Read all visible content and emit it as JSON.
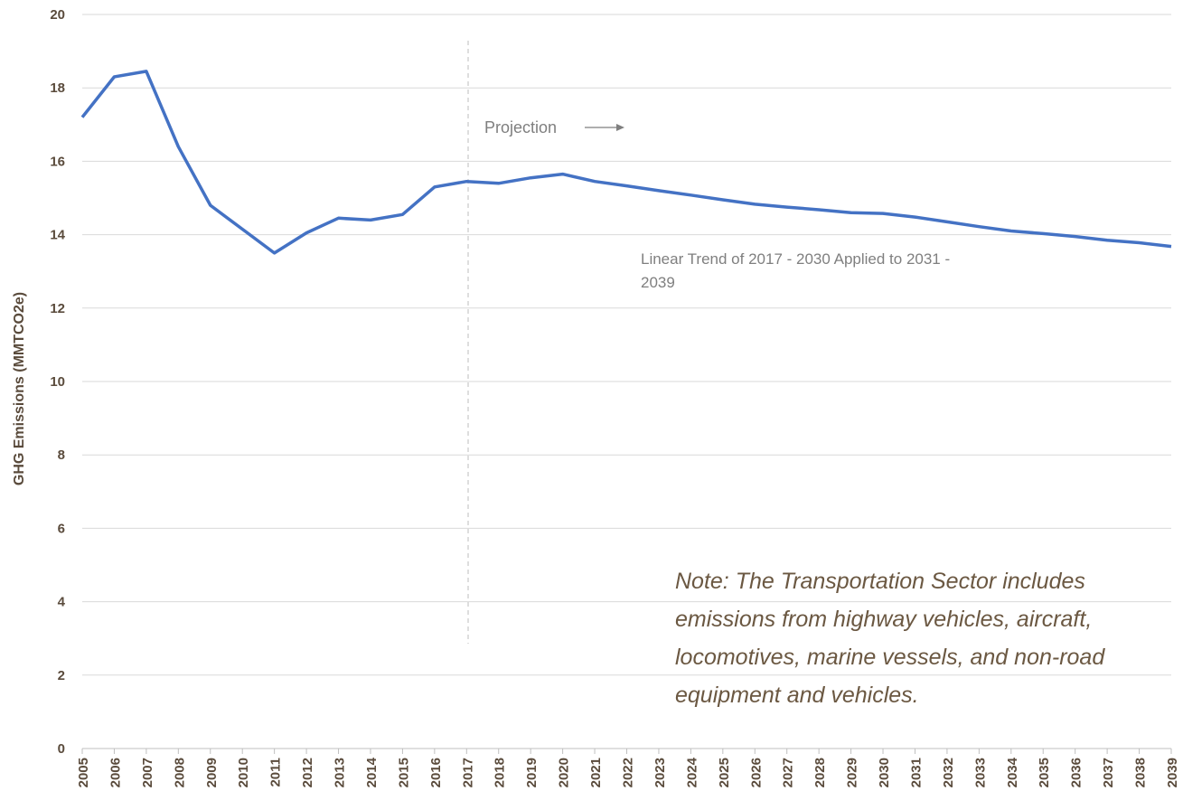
{
  "chart_data": {
    "type": "line",
    "y_label": "GHG Emissions (MMTCO2e)",
    "annotations": [
      "Projection",
      "Linear Trend of 2017 - 2030 Applied to 2031 - 2039",
      "Note: The Transportation Sector includes emissions from highway vehicles, aircraft, locomotives, marine vessels, and non-road equipment and vehicles."
    ],
    "categories": [
      "2005",
      "2006",
      "2007",
      "2008",
      "2009",
      "2010",
      "2011",
      "2012",
      "2013",
      "2014",
      "2015",
      "2016",
      "2017",
      "2018",
      "2019",
      "2020",
      "2021",
      "2022",
      "2023",
      "2024",
      "2025",
      "2026",
      "2027",
      "2028",
      "2029",
      "2030",
      "2031",
      "2032",
      "2033",
      "2034",
      "2035",
      "2036",
      "2037",
      "2038",
      "2039"
    ],
    "series": [
      {
        "color": "#4472c4",
        "values": [
          17.2,
          18.3,
          18.45,
          16.4,
          14.8,
          14.15,
          13.5,
          14.05,
          14.45,
          14.4,
          14.55,
          15.3,
          15.45,
          15.4,
          15.55,
          15.65,
          15.45,
          15.33,
          15.2,
          15.08,
          14.95,
          14.83,
          14.75,
          14.68,
          14.6,
          14.58,
          14.48,
          14.35,
          14.22,
          14.1,
          14.03,
          13.95,
          13.85,
          13.78,
          13.68
        ]
      }
    ],
    "ylim": [
      0,
      20
    ],
    "yticks": [
      0,
      2,
      4,
      6,
      8,
      10,
      12,
      14,
      16,
      18,
      20
    ],
    "grid": true
  }
}
